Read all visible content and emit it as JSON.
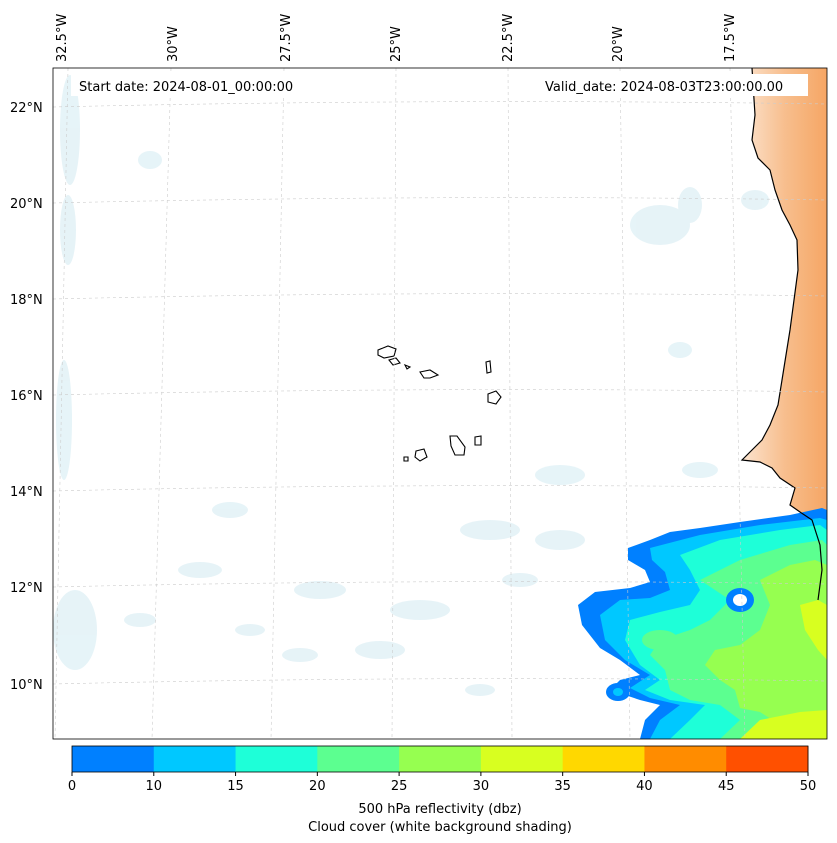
{
  "header": {
    "start_date": "Start date: 2024-08-01_00:00:00",
    "valid_date": "Valid_date: 2024-08-03T23:00:00.00"
  },
  "axes": {
    "longitude_labels": [
      "32.5°W",
      "30°W",
      "27.5°W",
      "25°W",
      "22.5°W",
      "20°W",
      "17.5°W"
    ],
    "latitude_labels": [
      "22°N",
      "20°N",
      "18°N",
      "16°N",
      "14°N",
      "12°N",
      "10°N"
    ]
  },
  "colorbar": {
    "ticks": [
      "0",
      "10",
      "15",
      "20",
      "25",
      "30",
      "35",
      "40",
      "45",
      "50"
    ],
    "colors": [
      "#0080ff",
      "#00c8ff",
      "#1effd8",
      "#5cff90",
      "#96ff50",
      "#d8ff20",
      "#ffd800",
      "#ff8c00",
      "#ff5000"
    ],
    "label": "500 hPa reflectivity (dbz)",
    "sublabel": "Cloud cover (white background shading)"
  },
  "map": {
    "land_color": "#f6a35e",
    "cloud_shading_color": "#d6ecf3",
    "coastline_color": "#000000"
  }
}
